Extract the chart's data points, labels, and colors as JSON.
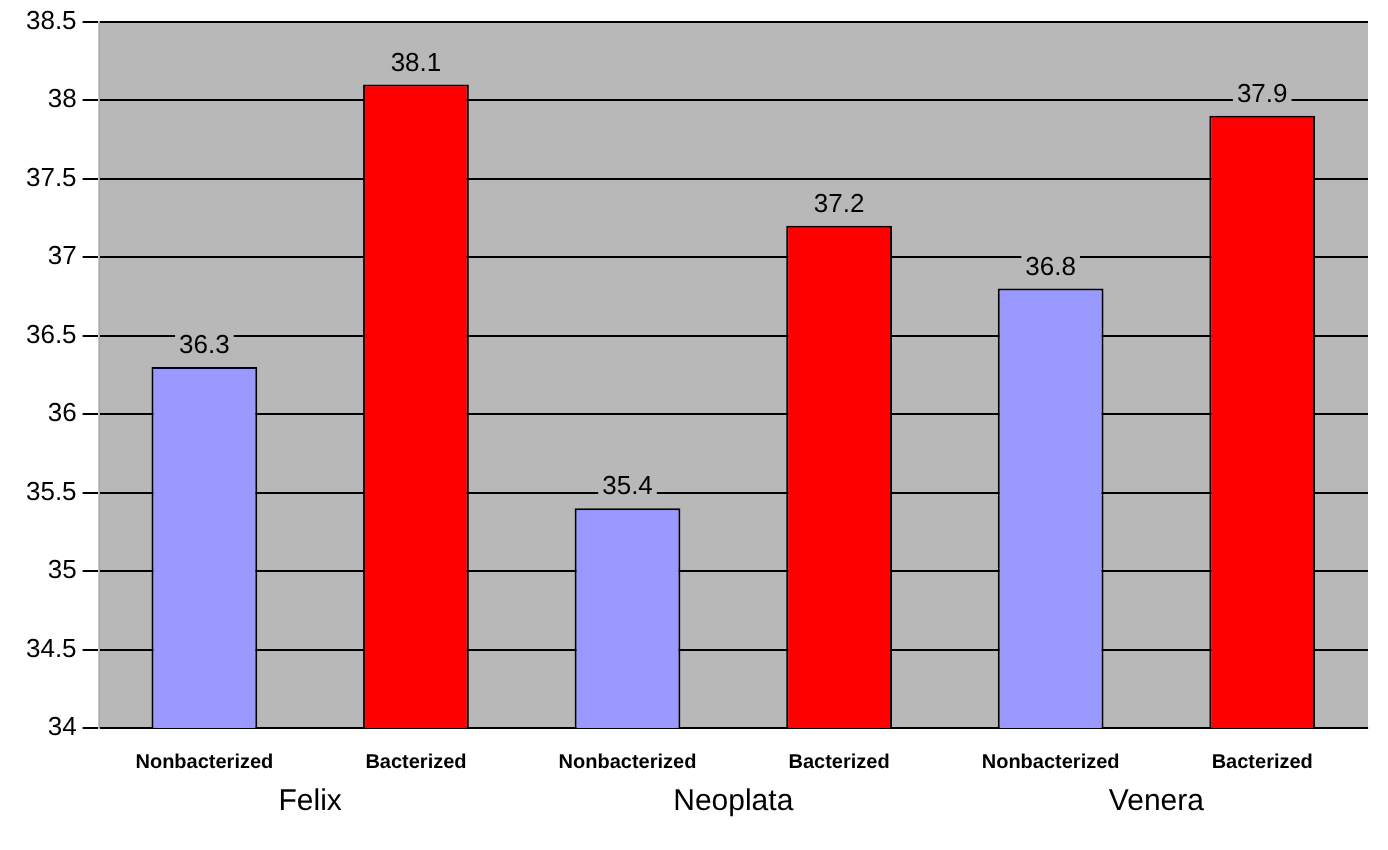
{
  "chart_data": {
    "type": "bar",
    "categories": [
      "Nonbacterized",
      "Bacterized",
      "Nonbacterized",
      "Bacterized",
      "Nonbacterized",
      "Bacterized"
    ],
    "values": [
      36.3,
      38.1,
      35.4,
      37.2,
      36.8,
      37.9
    ],
    "colors": [
      "#9999ff",
      "#ff0000",
      "#9999ff",
      "#ff0000",
      "#9999ff",
      "#ff0000"
    ],
    "ylim": [
      34,
      38.5
    ],
    "yticks": [
      34,
      34.5,
      35,
      35.5,
      36,
      36.5,
      37,
      37.5,
      38,
      38.5
    ],
    "grid": "y",
    "data_labels": true,
    "legend": false,
    "annotations": [
      "Felix",
      "Neoplata",
      "Venera"
    ]
  }
}
